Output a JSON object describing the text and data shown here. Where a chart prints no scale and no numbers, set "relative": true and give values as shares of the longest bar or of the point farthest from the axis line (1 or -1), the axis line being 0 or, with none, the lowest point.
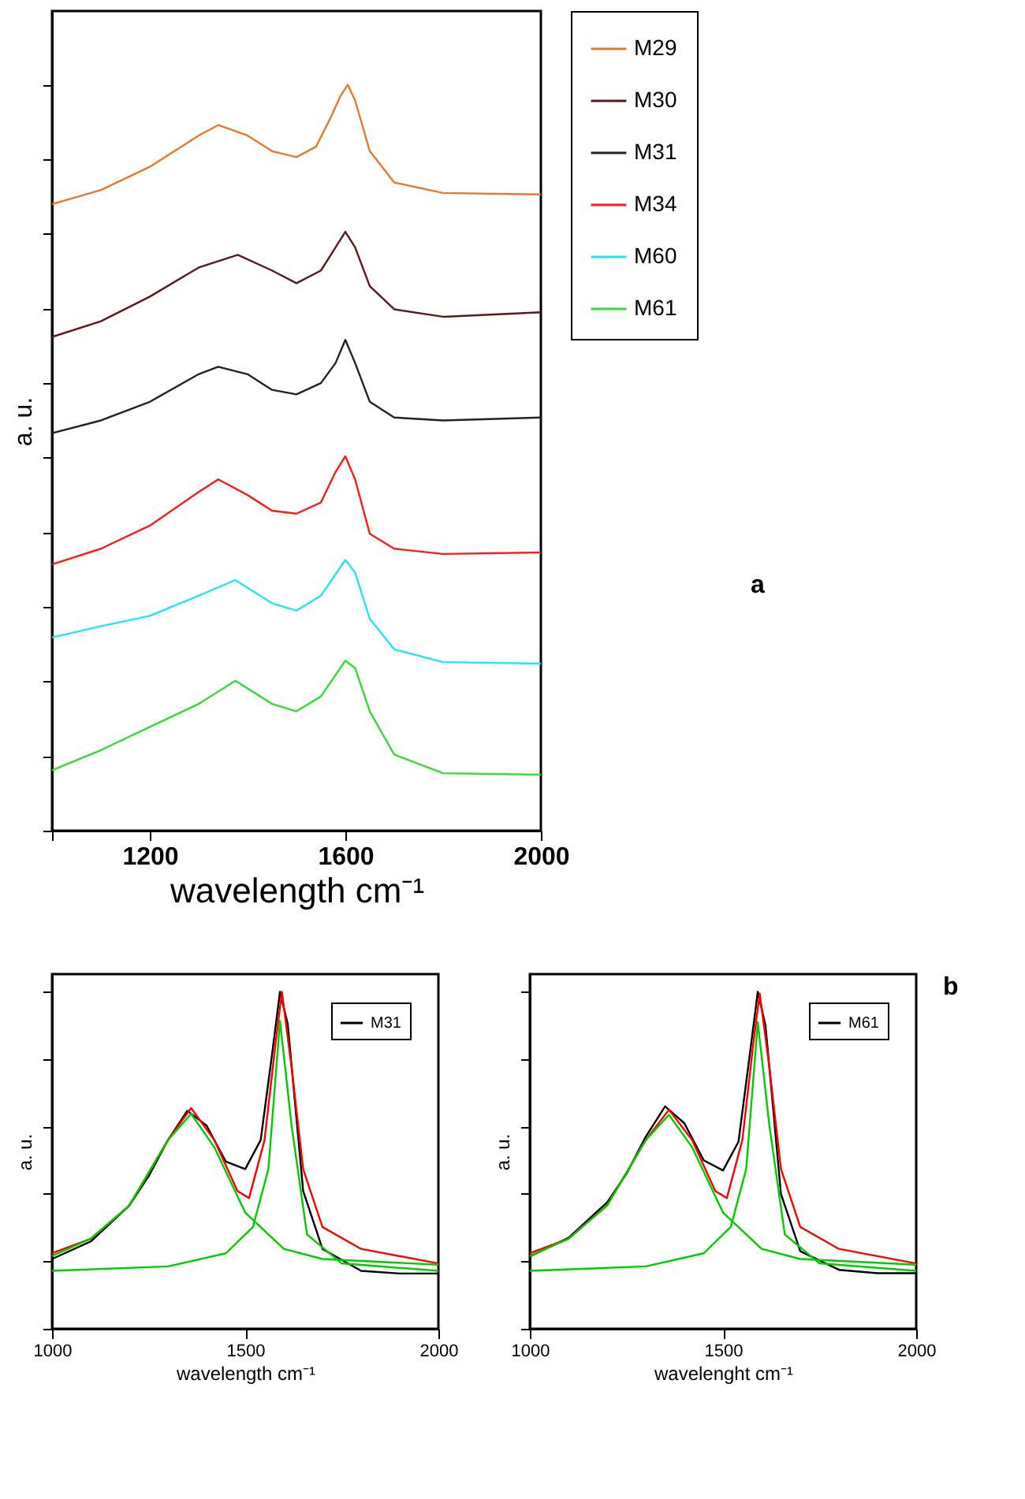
{
  "chart_data": [
    {
      "type": "line",
      "xlabel": "wavelength cm⁻¹",
      "ylabel": "a. u.",
      "relative": true,
      "xlim": [
        1000,
        2000
      ],
      "xticks": [
        {
          "value": 1000,
          "label": null
        },
        1200,
        1600,
        2000
      ],
      "tick_labels": "x",
      "grid": false,
      "legend": "right",
      "annotations": [
        "a"
      ],
      "series": [
        {
          "name": "M29",
          "color": "#e8782e",
          "x": [
            1000,
            1100,
            1200,
            1300,
            1340,
            1400,
            1450,
            1500,
            1540,
            1570,
            1590,
            1605,
            1620,
            1650,
            1700,
            1800,
            2000
          ],
          "values": [
            0.84,
            0.859,
            0.89,
            0.932,
            0.946,
            0.932,
            0.911,
            0.903,
            0.917,
            0.956,
            0.985,
            1.0,
            0.979,
            0.911,
            0.869,
            0.855,
            0.853
          ]
        },
        {
          "name": "M30",
          "color": "#5a1a1a",
          "x": [
            1000,
            1100,
            1200,
            1300,
            1380,
            1450,
            1500,
            1550,
            1580,
            1600,
            1620,
            1650,
            1700,
            1800,
            2000
          ],
          "values": [
            0.662,
            0.683,
            0.716,
            0.755,
            0.772,
            0.751,
            0.734,
            0.751,
            0.782,
            0.803,
            0.782,
            0.73,
            0.699,
            0.689,
            0.695
          ]
        },
        {
          "name": "M31",
          "color": "#222222",
          "x": [
            1000,
            1100,
            1200,
            1300,
            1340,
            1400,
            1450,
            1500,
            1550,
            1580,
            1600,
            1620,
            1650,
            1700,
            1800,
            2000
          ],
          "values": [
            0.533,
            0.55,
            0.575,
            0.612,
            0.622,
            0.612,
            0.591,
            0.585,
            0.6,
            0.627,
            0.658,
            0.627,
            0.575,
            0.554,
            0.55,
            0.554
          ]
        },
        {
          "name": "M34",
          "color": "#ff1a1a",
          "x": [
            1000,
            1100,
            1200,
            1300,
            1340,
            1400,
            1450,
            1500,
            1550,
            1580,
            1600,
            1620,
            1650,
            1700,
            1800,
            2000
          ],
          "values": [
            0.357,
            0.378,
            0.409,
            0.454,
            0.471,
            0.45,
            0.429,
            0.425,
            0.44,
            0.481,
            0.502,
            0.471,
            0.398,
            0.378,
            0.371,
            0.373
          ]
        },
        {
          "name": "M60",
          "color": "#22e5f5",
          "x": [
            1000,
            1100,
            1200,
            1300,
            1375,
            1450,
            1500,
            1550,
            1600,
            1620,
            1650,
            1700,
            1800,
            2000
          ],
          "values": [
            0.259,
            0.274,
            0.288,
            0.315,
            0.336,
            0.305,
            0.295,
            0.315,
            0.363,
            0.346,
            0.284,
            0.243,
            0.226,
            0.224
          ]
        },
        {
          "name": "M61",
          "color": "#33dd33",
          "x": [
            1000,
            1100,
            1200,
            1300,
            1375,
            1450,
            1500,
            1550,
            1600,
            1620,
            1650,
            1700,
            1800,
            2000
          ],
          "values": [
            0.081,
            0.108,
            0.139,
            0.17,
            0.201,
            0.17,
            0.16,
            0.18,
            0.228,
            0.218,
            0.16,
            0.102,
            0.077,
            0.075
          ]
        }
      ]
    },
    {
      "type": "line",
      "xlabel": "wavelength cm⁻¹",
      "ylabel": "a. u.",
      "relative": true,
      "xlim": [
        1000,
        2000
      ],
      "xticks": [
        1000,
        1500,
        2000
      ],
      "tick_labels": "x",
      "grid": false,
      "legend": "top right",
      "series": [
        {
          "name": "M31",
          "color": "#000000",
          "x": [
            1000,
            1100,
            1200,
            1250,
            1300,
            1350,
            1400,
            1450,
            1500,
            1540,
            1570,
            1590,
            1610,
            1650,
            1700,
            1800,
            1900,
            2000
          ],
          "values": [
            0.207,
            0.259,
            0.366,
            0.453,
            0.56,
            0.647,
            0.603,
            0.496,
            0.474,
            0.56,
            0.819,
            1.0,
            0.905,
            0.409,
            0.237,
            0.172,
            0.164,
            0.164
          ]
        },
        {
          "color": "#ff0000",
          "x": [
            1000,
            1100,
            1200,
            1300,
            1360,
            1420,
            1480,
            1510,
            1550,
            1580,
            1595,
            1620,
            1650,
            1700,
            1800,
            2000
          ],
          "values": [
            0.224,
            0.267,
            0.366,
            0.56,
            0.655,
            0.56,
            0.409,
            0.388,
            0.56,
            0.862,
            1.0,
            0.776,
            0.474,
            0.302,
            0.237,
            0.194
          ]
        },
        {
          "color": "#00cc00",
          "x": [
            1000,
            1100,
            1200,
            1300,
            1360,
            1420,
            1500,
            1600,
            1700,
            2000
          ],
          "values": [
            0.216,
            0.267,
            0.366,
            0.56,
            0.638,
            0.539,
            0.345,
            0.237,
            0.207,
            0.19
          ]
        },
        {
          "color": "#00cc00",
          "x": [
            1000,
            1300,
            1450,
            1520,
            1560,
            1590,
            1620,
            1660,
            1750,
            2000
          ],
          "values": [
            0.172,
            0.185,
            0.224,
            0.302,
            0.474,
            0.914,
            0.603,
            0.28,
            0.194,
            0.172
          ]
        }
      ]
    },
    {
      "type": "line",
      "xlabel": "wavelenght cm⁻¹",
      "ylabel": "a. u.",
      "relative": true,
      "xlim": [
        1000,
        2000
      ],
      "xticks": [
        1000,
        1500,
        2000
      ],
      "tick_labels": "x",
      "grid": false,
      "legend": "top right",
      "annotations": [
        "b"
      ],
      "series": [
        {
          "name": "M61",
          "color": "#000000",
          "x": [
            1000,
            1100,
            1200,
            1250,
            1300,
            1350,
            1400,
            1450,
            1500,
            1540,
            1570,
            1590,
            1610,
            1650,
            1700,
            1800,
            1900,
            2000
          ],
          "values": [
            0.215,
            0.27,
            0.375,
            0.46,
            0.57,
            0.66,
            0.61,
            0.5,
            0.47,
            0.555,
            0.82,
            1.0,
            0.9,
            0.4,
            0.23,
            0.175,
            0.165,
            0.165
          ]
        },
        {
          "color": "#ff0000",
          "x": [
            1000,
            1100,
            1200,
            1300,
            1360,
            1420,
            1480,
            1510,
            1550,
            1580,
            1595,
            1620,
            1650,
            1700,
            1800,
            2000
          ],
          "values": [
            0.224,
            0.267,
            0.366,
            0.56,
            0.65,
            0.56,
            0.409,
            0.388,
            0.56,
            0.862,
            0.995,
            0.776,
            0.474,
            0.302,
            0.237,
            0.194
          ]
        },
        {
          "color": "#00cc00",
          "x": [
            1000,
            1100,
            1200,
            1300,
            1360,
            1420,
            1500,
            1600,
            1700,
            2000
          ],
          "values": [
            0.216,
            0.267,
            0.366,
            0.56,
            0.635,
            0.539,
            0.345,
            0.237,
            0.207,
            0.19
          ]
        },
        {
          "color": "#00cc00",
          "x": [
            1000,
            1300,
            1450,
            1520,
            1560,
            1590,
            1620,
            1660,
            1750,
            2000
          ],
          "values": [
            0.172,
            0.185,
            0.224,
            0.302,
            0.474,
            0.91,
            0.603,
            0.28,
            0.194,
            0.172
          ]
        }
      ]
    }
  ]
}
